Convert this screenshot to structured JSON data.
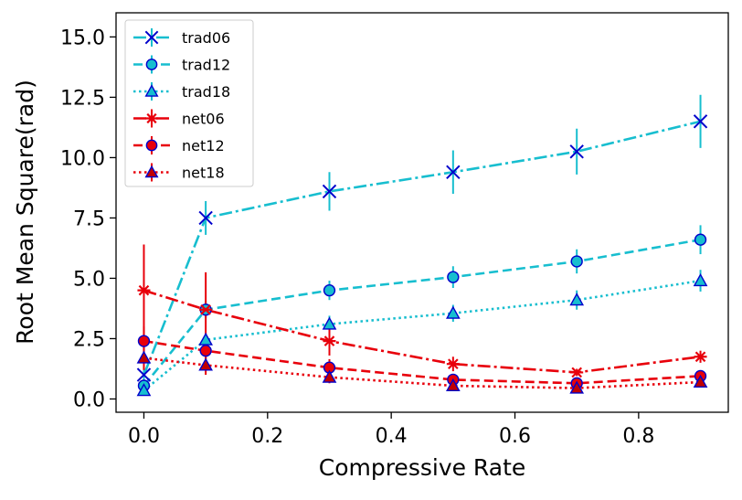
{
  "chart_data": {
    "type": "line",
    "title": "",
    "xlabel": "Compressive Rate",
    "ylabel": "Root Mean Square(rad)",
    "xlim": [
      -0.045,
      0.945
    ],
    "ylim": [
      -0.55,
      16.0
    ],
    "xticks": [
      0.0,
      0.2,
      0.4,
      0.6,
      0.8
    ],
    "xtick_labels": [
      "0.0",
      "0.2",
      "0.4",
      "0.6",
      "0.8"
    ],
    "yticks": [
      0.0,
      2.5,
      5.0,
      7.5,
      10.0,
      12.5,
      15.0
    ],
    "ytick_labels": [
      "0.0",
      "2.5",
      "5.0",
      "7.5",
      "10.0",
      "12.5",
      "15.0"
    ],
    "grid": false,
    "legend_position": "top-left",
    "x": [
      0.0,
      0.1,
      0.3,
      0.5,
      0.7,
      0.9
    ],
    "series": [
      {
        "name": "trad06",
        "color": "#17becf",
        "marker": "x",
        "linestyle": "dashdot",
        "values": [
          1.0,
          7.5,
          8.6,
          9.4,
          10.25,
          11.5
        ],
        "errors": [
          0.3,
          0.7,
          0.8,
          0.9,
          0.95,
          1.1
        ]
      },
      {
        "name": "trad12",
        "color": "#17becf",
        "marker": "circle",
        "linestyle": "dashed",
        "values": [
          0.55,
          3.7,
          4.5,
          5.05,
          5.7,
          6.6
        ],
        "errors": [
          0.15,
          0.35,
          0.4,
          0.45,
          0.5,
          0.6
        ]
      },
      {
        "name": "trad18",
        "color": "#17becf",
        "marker": "triangle",
        "linestyle": "dotted",
        "values": [
          0.35,
          2.45,
          3.1,
          3.55,
          4.1,
          4.9
        ],
        "errors": [
          0.1,
          0.25,
          0.35,
          0.35,
          0.4,
          0.45
        ]
      },
      {
        "name": "net06",
        "color": "#e8000b",
        "marker": "star",
        "linestyle": "dashdot",
        "values": [
          4.5,
          3.7,
          2.4,
          1.45,
          1.1,
          1.75
        ],
        "errors": [
          1.9,
          1.55,
          0.6,
          0.3,
          0.15,
          0.25
        ]
      },
      {
        "name": "net12",
        "color": "#e8000b",
        "marker": "circle",
        "linestyle": "dashed",
        "values": [
          2.4,
          2.0,
          1.3,
          0.8,
          0.65,
          0.95
        ],
        "errors": [
          0.6,
          0.5,
          0.35,
          0.2,
          0.15,
          0.2
        ]
      },
      {
        "name": "net18",
        "color": "#e8000b",
        "marker": "triangle",
        "linestyle": "dotted",
        "values": [
          1.7,
          1.4,
          0.9,
          0.55,
          0.45,
          0.7
        ],
        "errors": [
          0.5,
          0.4,
          0.25,
          0.15,
          0.1,
          0.15
        ]
      }
    ],
    "marker_fill_colors": {
      "circle_trad": "#17becf",
      "triangle_trad": "#17becf",
      "circle_net": "#e8000b",
      "triangle_net": "#c00000"
    },
    "marker_edge_color": "#0000cc"
  }
}
